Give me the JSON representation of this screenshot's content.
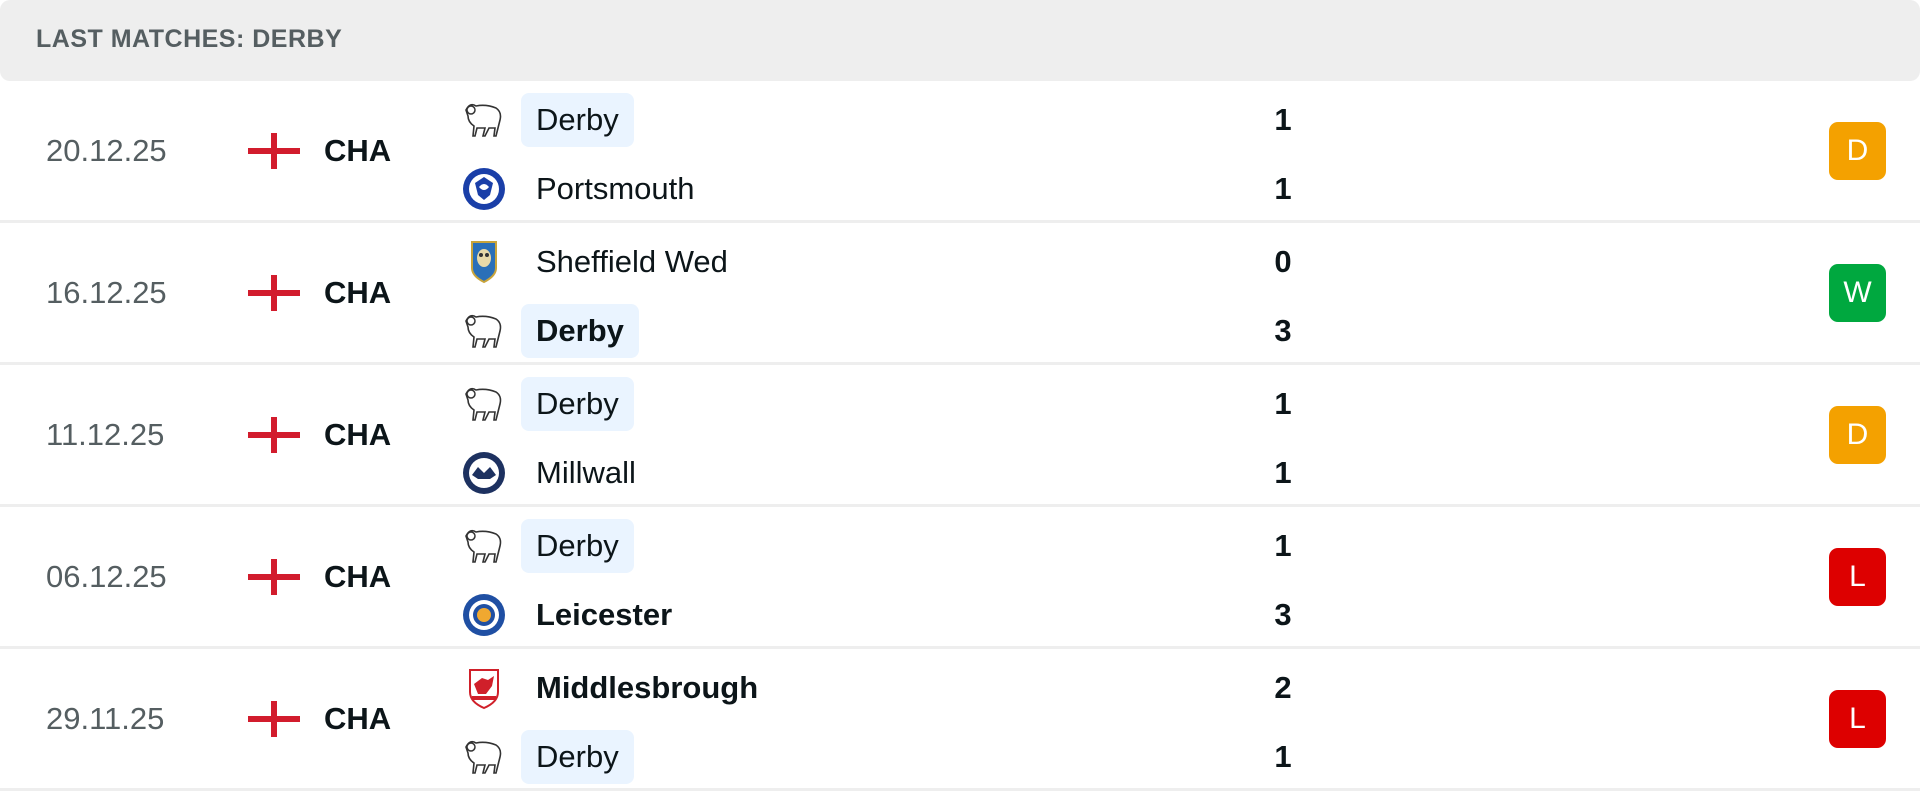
{
  "header": {
    "title": "LAST MATCHES: DERBY"
  },
  "colors": {
    "D": "#f4a100",
    "W": "#00a83f",
    "L": "#dd0000",
    "highlight": "#eaf4ff"
  },
  "matches": [
    {
      "date": "20.12.25",
      "league": "CHA",
      "country_icon": "england-flag-icon",
      "home": {
        "name": "Derby",
        "score": "1",
        "logo": "derby-logo",
        "highlight": true,
        "winner": false
      },
      "away": {
        "name": "Portsmouth",
        "score": "1",
        "logo": "portsmouth-logo",
        "highlight": false,
        "winner": false
      },
      "result": "D"
    },
    {
      "date": "16.12.25",
      "league": "CHA",
      "country_icon": "england-flag-icon",
      "home": {
        "name": "Sheffield Wed",
        "score": "0",
        "logo": "sheffield-wed-logo",
        "highlight": false,
        "winner": false
      },
      "away": {
        "name": "Derby",
        "score": "3",
        "logo": "derby-logo",
        "highlight": true,
        "winner": true
      },
      "result": "W"
    },
    {
      "date": "11.12.25",
      "league": "CHA",
      "country_icon": "england-flag-icon",
      "home": {
        "name": "Derby",
        "score": "1",
        "logo": "derby-logo",
        "highlight": true,
        "winner": false
      },
      "away": {
        "name": "Millwall",
        "score": "1",
        "logo": "millwall-logo",
        "highlight": false,
        "winner": false
      },
      "result": "D"
    },
    {
      "date": "06.12.25",
      "league": "CHA",
      "country_icon": "england-flag-icon",
      "home": {
        "name": "Derby",
        "score": "1",
        "logo": "derby-logo",
        "highlight": true,
        "winner": false
      },
      "away": {
        "name": "Leicester",
        "score": "3",
        "logo": "leicester-logo",
        "highlight": false,
        "winner": true
      },
      "result": "L"
    },
    {
      "date": "29.11.25",
      "league": "CHA",
      "country_icon": "england-flag-icon",
      "home": {
        "name": "Middlesbrough",
        "score": "2",
        "logo": "middlesbrough-logo",
        "highlight": false,
        "winner": true
      },
      "away": {
        "name": "Derby",
        "score": "1",
        "logo": "derby-logo",
        "highlight": true,
        "winner": false
      },
      "result": "L"
    }
  ]
}
